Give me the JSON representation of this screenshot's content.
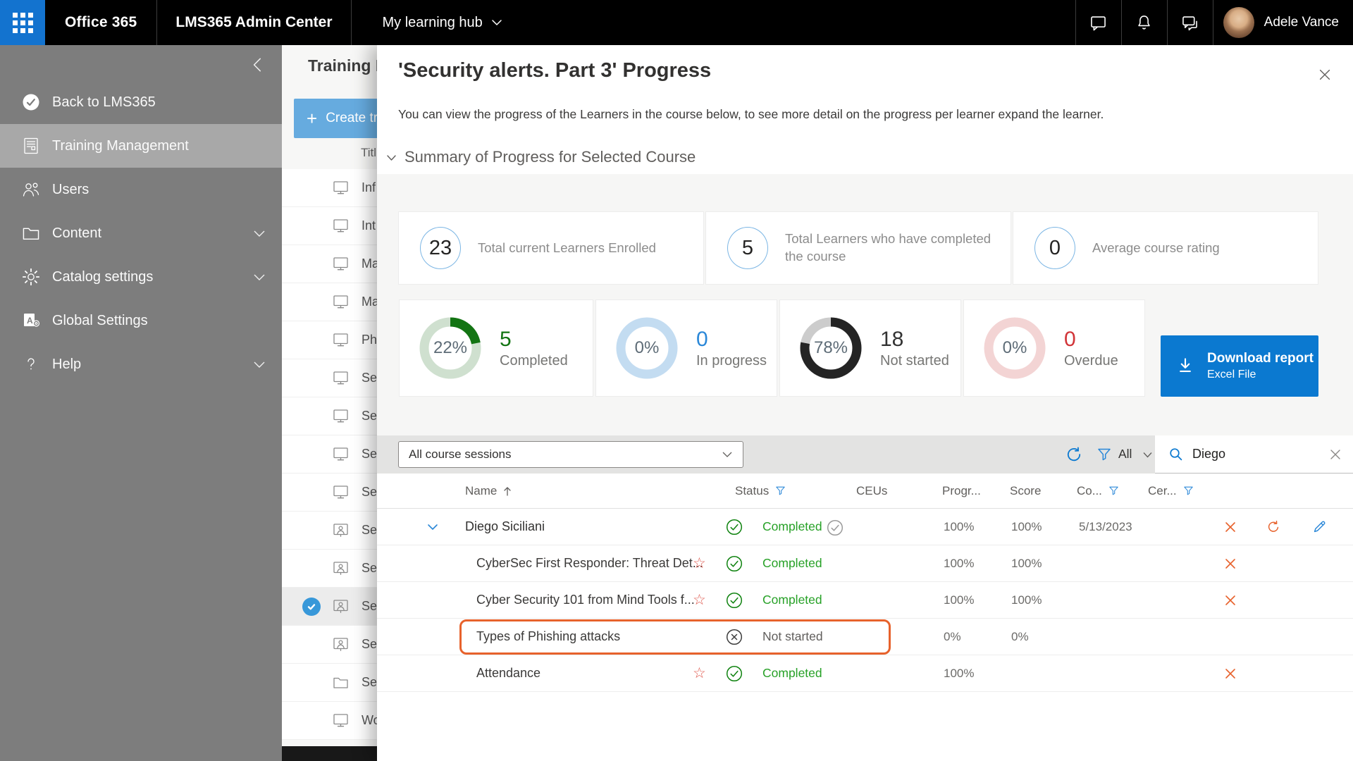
{
  "colors": {
    "accent_blue": "#0b79d0",
    "green": "#107c10",
    "orange": "#e7622c",
    "red": "#d13438",
    "topbar_blue": "#1373cf"
  },
  "topbar": {
    "brand": "Office 365",
    "admin_center": "LMS365 Admin Center",
    "hub": "My learning hub",
    "icons": [
      "chat",
      "notifications",
      "feedback"
    ],
    "user": "Adele Vance"
  },
  "sidebar": {
    "items": [
      {
        "label": "Back to LMS365",
        "icon": "back-check",
        "chevron": false,
        "active": false
      },
      {
        "label": "Training Management",
        "icon": "document",
        "chevron": false,
        "active": true
      },
      {
        "label": "Users",
        "icon": "people",
        "chevron": false,
        "active": false
      },
      {
        "label": "Content",
        "icon": "folder",
        "chevron": true,
        "active": false
      },
      {
        "label": "Catalog settings",
        "icon": "gear",
        "chevron": true,
        "active": false
      },
      {
        "label": "Global Settings",
        "icon": "global-a",
        "chevron": false,
        "active": false
      },
      {
        "label": "Help",
        "icon": "question",
        "chevron": true,
        "active": false
      }
    ]
  },
  "middle": {
    "title": "Training M",
    "create_button": "Create tra",
    "column_header": "Titl",
    "rows": [
      {
        "text": "Inf",
        "icon": "monitor",
        "selected": false
      },
      {
        "text": "Int",
        "icon": "monitor",
        "selected": false
      },
      {
        "text": "Ma",
        "icon": "monitor",
        "selected": false
      },
      {
        "text": "Ma",
        "icon": "monitor",
        "selected": false
      },
      {
        "text": "Ph",
        "icon": "monitor",
        "selected": false
      },
      {
        "text": "Se",
        "icon": "monitor",
        "selected": false
      },
      {
        "text": "Se",
        "icon": "monitor",
        "selected": false
      },
      {
        "text": "Se",
        "icon": "monitor",
        "selected": false
      },
      {
        "text": "Se",
        "icon": "monitor",
        "selected": false
      },
      {
        "text": "Se",
        "icon": "person-board",
        "selected": false
      },
      {
        "text": "Se",
        "icon": "person-board",
        "selected": false
      },
      {
        "text": "Se",
        "icon": "person-board",
        "selected": true
      },
      {
        "text": "Se",
        "icon": "person-board",
        "selected": false
      },
      {
        "text": "Se",
        "icon": "folder",
        "selected": false
      },
      {
        "text": "Wo",
        "icon": "monitor",
        "selected": false
      }
    ]
  },
  "panel": {
    "title": "'Security alerts. Part 3' Progress",
    "description": "You can view the progress of the Learners in the course below, to see more detail on the progress per learner expand the learner.",
    "summary_section": "Summary of Progress for Selected Course",
    "stats": [
      {
        "value": "23",
        "label": "Total current Learners Enrolled"
      },
      {
        "value": "5",
        "label": "Total Learners who have completed the course"
      },
      {
        "value": "0",
        "label": "Average course rating"
      }
    ],
    "donuts": [
      {
        "percent": "22%",
        "value": 22,
        "count": "5",
        "label": "Completed",
        "arc_color": "#137413",
        "track_color": "#cfe0cf",
        "count_color": "#137413"
      },
      {
        "percent": "0%",
        "value": 0,
        "count": "0",
        "label": "In progress",
        "arc_color": "#2b88d8",
        "track_color": "#c3dcf1",
        "count_color": "#2b88d8"
      },
      {
        "percent": "78%",
        "value": 78,
        "count": "18",
        "label": "Not started",
        "arc_color": "#242424",
        "track_color": "#cccccc",
        "count_color": "#333333"
      },
      {
        "percent": "0%",
        "value": 0,
        "count": "0",
        "label": "Overdue",
        "arc_color": "#d13438",
        "track_color": "#f3d4d4",
        "count_color": "#d13438"
      }
    ],
    "download": {
      "title": "Download report",
      "subtitle": "Excel File"
    },
    "toolbar": {
      "sessions_dropdown": "All course sessions",
      "filter_label": "All",
      "search_value": "Diego"
    },
    "table": {
      "headers": {
        "name": "Name",
        "status": "Status",
        "ceus": "CEUs",
        "progress": "Progr...",
        "score": "Score",
        "completed": "Co...",
        "cert": "Cer..."
      },
      "rows": [
        {
          "name": "Diego Siciliani",
          "status": "Completed",
          "progress": "100%",
          "score": "100%",
          "completed": "5/13/2023"
        },
        {
          "name": "CyberSec First Responder: Threat Det...",
          "status": "Completed",
          "progress": "100%",
          "score": "100%",
          "completed": ""
        },
        {
          "name": "Cyber Security 101 from Mind Tools f...",
          "status": "Completed",
          "progress": "100%",
          "score": "100%",
          "completed": ""
        },
        {
          "name": "Types of Phishing attacks",
          "status": "Not started",
          "progress": "0%",
          "score": "0%",
          "completed": ""
        },
        {
          "name": "Attendance",
          "status": "Completed",
          "progress": "100%",
          "score": "",
          "completed": ""
        }
      ]
    }
  }
}
